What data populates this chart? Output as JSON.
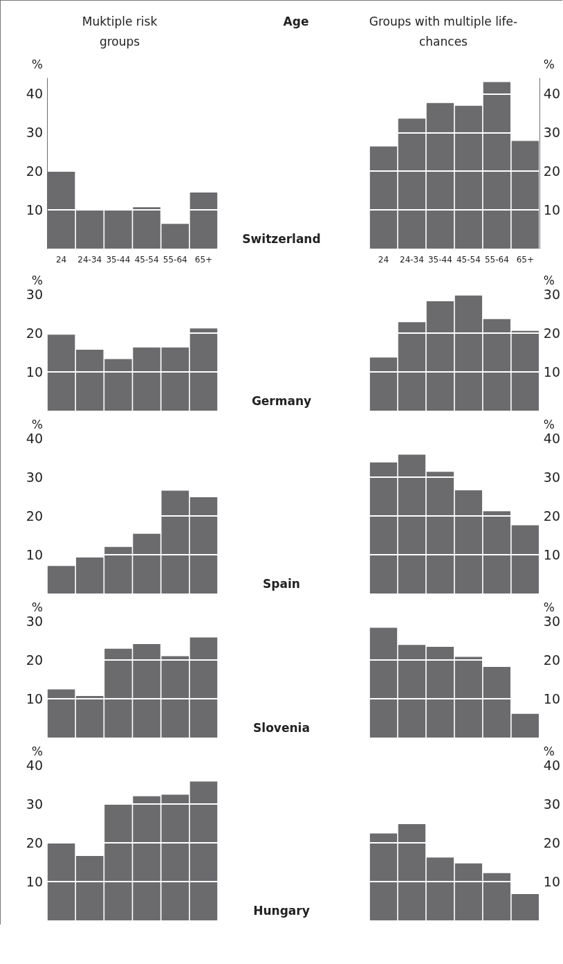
{
  "chart_data": [
    {
      "type": "bar",
      "title": "Muktiple risk groups",
      "xlabel": "Age",
      "ylabel": "%",
      "annotations": [
        "Switzerland"
      ],
      "categories": [
        "24",
        "24-34",
        "35-44",
        "45-54",
        "55-64",
        "65+"
      ],
      "values": [
        19.9,
        10,
        10,
        10.7,
        6.4,
        14.5
      ],
      "color": "#6b6b6e",
      "ylim": [
        0,
        44
      ],
      "yticks": [
        10,
        20,
        30,
        40
      ],
      "grid": "y"
    },
    {
      "type": "bar",
      "title": "Groups with multiple life-chances",
      "ylabel": "%",
      "categories": [
        "24",
        "24-34",
        "35-44",
        "45-54",
        "55-64",
        "65+"
      ],
      "values": [
        26.4,
        33.6,
        37.6,
        36.9,
        43,
        27.8
      ],
      "color": "#6b6b6e",
      "ylim": [
        0,
        44
      ],
      "yticks": [
        10,
        20,
        30,
        40
      ],
      "grid": "y"
    },
    {
      "type": "bar",
      "ylabel": "%",
      "annotations": [
        "Germany"
      ],
      "categories": [
        null,
        null,
        null,
        null,
        null,
        null
      ],
      "values": [
        19.6,
        15.7,
        13.3,
        16.3,
        16.3,
        21.2
      ],
      "color": "#6b6b6e",
      "ylim": [
        0,
        30
      ],
      "yticks": [
        10,
        20,
        30
      ],
      "grid": "y",
      "tick_labels": "y"
    },
    {
      "type": "bar",
      "ylabel": "%",
      "categories": [
        null,
        null,
        null,
        null,
        null,
        null
      ],
      "values": [
        13.7,
        22.8,
        28.2,
        29.7,
        23.6,
        20.6
      ],
      "color": "#6b6b6e",
      "ylim": [
        0,
        30
      ],
      "yticks": [
        10,
        20,
        30
      ],
      "grid": "y",
      "tick_labels": "y"
    },
    {
      "type": "bar",
      "ylabel": "%",
      "annotations": [
        "Spain"
      ],
      "categories": [
        null,
        null,
        null,
        null,
        null,
        null
      ],
      "values": [
        7.1,
        9.3,
        12.0,
        15.4,
        26.5,
        24.8
      ],
      "color": "#6b6b6e",
      "ylim": [
        0,
        40
      ],
      "yticks": [
        10,
        20,
        30,
        40
      ],
      "grid": "y",
      "tick_labels": "y"
    },
    {
      "type": "bar",
      "ylabel": "%",
      "categories": [
        null,
        null,
        null,
        null,
        null,
        null
      ],
      "values": [
        33.8,
        35.8,
        31.4,
        26.6,
        21.2,
        17.6
      ],
      "color": "#6b6b6e",
      "ylim": [
        0,
        40
      ],
      "yticks": [
        10,
        20,
        30,
        40
      ],
      "grid": "y",
      "tick_labels": "y"
    },
    {
      "type": "bar",
      "ylabel": "%",
      "annotations": [
        "Slovenia"
      ],
      "categories": [
        null,
        null,
        null,
        null,
        null,
        null
      ],
      "values": [
        12.4,
        10.7,
        22.9,
        24.1,
        21.0,
        25.8
      ],
      "color": "#6b6b6e",
      "ylim": [
        0,
        30
      ],
      "yticks": [
        10,
        20,
        30
      ],
      "grid": "y",
      "tick_labels": "y"
    },
    {
      "type": "bar",
      "ylabel": "%",
      "categories": [
        null,
        null,
        null,
        null,
        null,
        null
      ],
      "values": [
        28.3,
        23.9,
        23.4,
        20.8,
        18.2,
        6.1
      ],
      "color": "#6b6b6e",
      "ylim": [
        0,
        30
      ],
      "yticks": [
        10,
        20,
        30
      ],
      "grid": "y",
      "tick_labels": "y"
    },
    {
      "type": "bar",
      "ylabel": "%",
      "annotations": [
        "Hungary"
      ],
      "categories": [
        null,
        null,
        null,
        null,
        null,
        null
      ],
      "values": [
        19.9,
        16.6,
        30.1,
        32.0,
        32.4,
        35.8
      ],
      "color": "#6b6b6e",
      "ylim": [
        0,
        40
      ],
      "yticks": [
        10,
        20,
        30,
        40
      ],
      "grid": "y",
      "tick_labels": "y"
    },
    {
      "type": "bar",
      "ylabel": "%",
      "categories": [
        null,
        null,
        null,
        null,
        null,
        null
      ],
      "values": [
        22.4,
        24.8,
        16.2,
        14.7,
        12.2,
        6.8
      ],
      "color": "#6b6b6e",
      "ylim": [
        0,
        40
      ],
      "yticks": [
        10,
        20,
        30,
        40
      ],
      "grid": "y",
      "tick_labels": "y"
    }
  ]
}
